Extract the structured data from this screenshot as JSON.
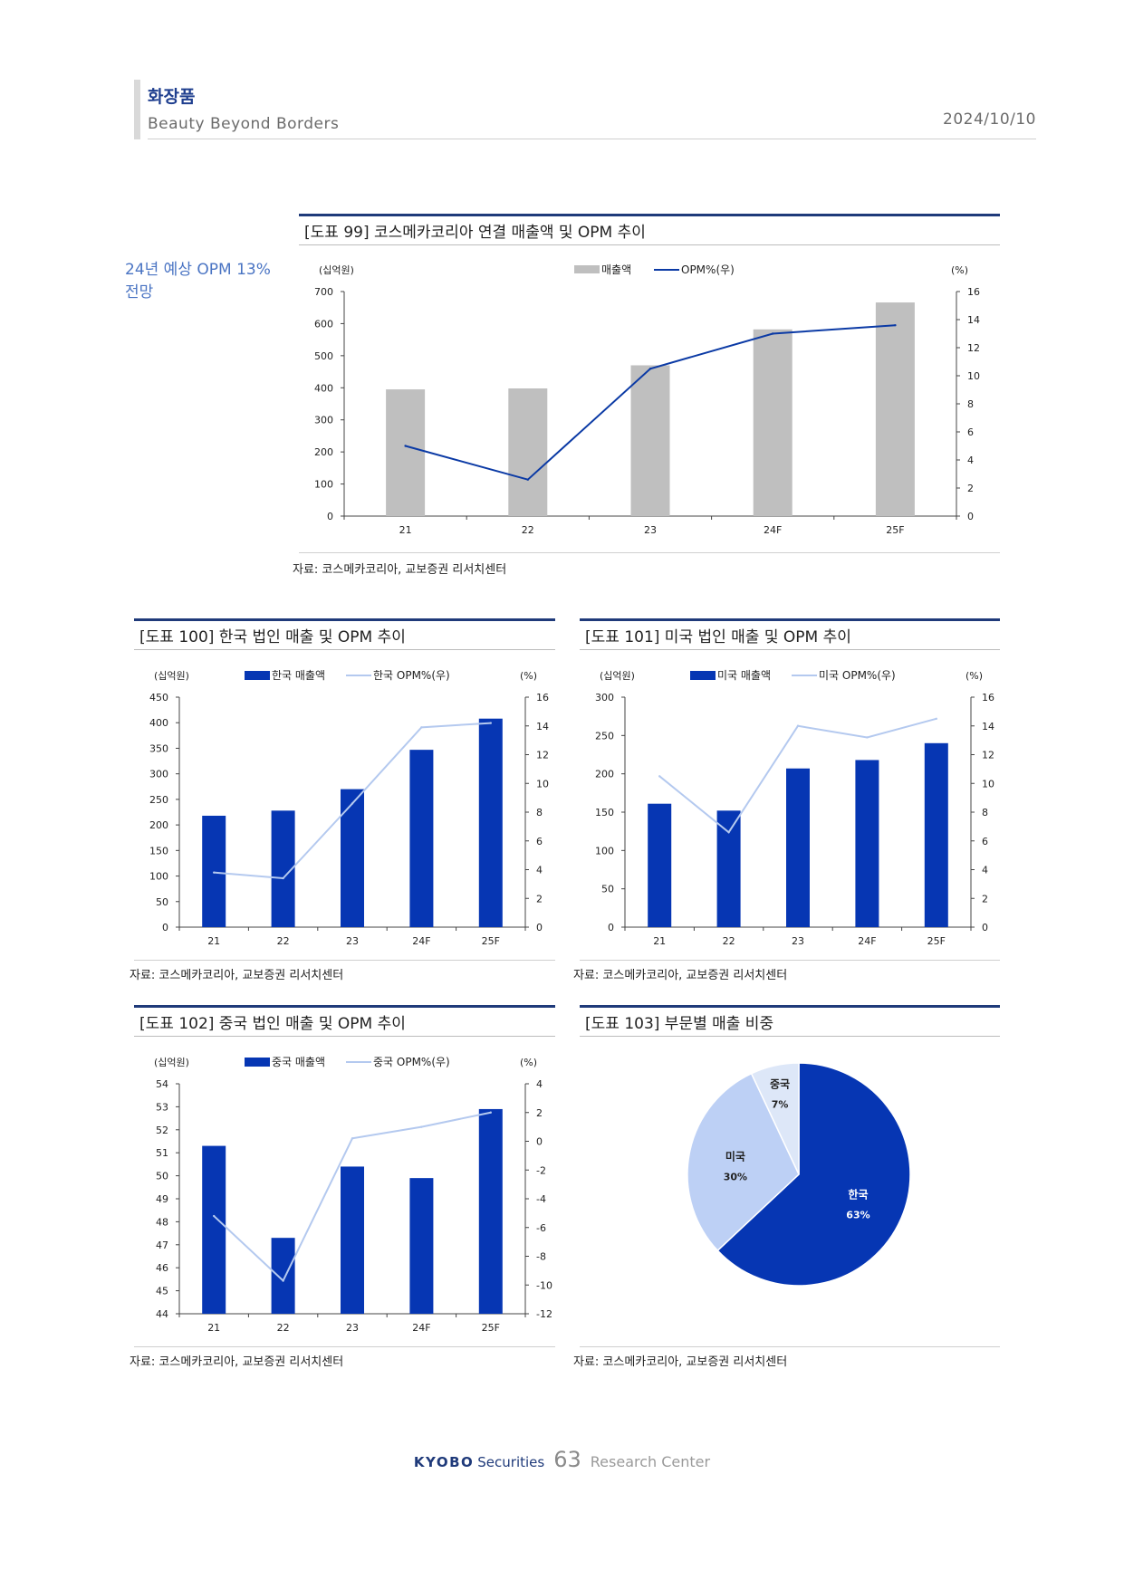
{
  "header": {
    "title": "화장품",
    "subtitle": "Beauty Beyond Borders",
    "date": "2024/10/10"
  },
  "side_note": [
    "24년 예상 OPM 13%",
    "전망"
  ],
  "figures": {
    "fig99": {
      "title": "[도표 99] 코스메카코리아 연결 매출액 및 OPM 추이",
      "source": "자료: 코스메카코리아, 교보증권 리서치센터"
    },
    "fig100": {
      "title": "[도표 100] 한국 법인 매출 및 OPM 추이",
      "source": "자료: 코스메카코리아, 교보증권 리서치센터"
    },
    "fig101": {
      "title": "[도표 101] 미국 법인 매출 및 OPM 추이",
      "source": "자료: 코스메카코리아, 교보증권 리서치센터"
    },
    "fig102": {
      "title": "[도표 102] 중국 법인 매출 및 OPM 추이",
      "source": "자료: 코스메카코리아, 교보증권 리서치센터"
    },
    "fig103": {
      "title": "[도표 103] 부문별 매출 비중",
      "source": "자료: 코스메카코리아, 교보증권 리서치센터"
    }
  },
  "chart_data": [
    {
      "id": "fig99",
      "type": "bar+line",
      "categories": [
        "21",
        "22",
        "23",
        "24F",
        "25F"
      ],
      "series": [
        {
          "name": "매출액",
          "kind": "bar",
          "axis": "left",
          "values": [
            395,
            398,
            470,
            582,
            666
          ]
        },
        {
          "name": "OPM%(우)",
          "kind": "line",
          "axis": "right",
          "values": [
            5.0,
            2.6,
            10.5,
            13.0,
            13.6
          ]
        }
      ],
      "left_axis": {
        "unit": "(십억원)",
        "min": 0,
        "max": 700,
        "step": 100
      },
      "right_axis": {
        "unit": "(%)",
        "min": 0,
        "max": 16,
        "step": 2
      },
      "colors": {
        "bar": "#bfbfbf",
        "line": "#0b3aa5"
      }
    },
    {
      "id": "fig100",
      "type": "bar+line",
      "categories": [
        "21",
        "22",
        "23",
        "24F",
        "25F"
      ],
      "series": [
        {
          "name": "한국 매출액",
          "kind": "bar",
          "axis": "left",
          "values": [
            218,
            228,
            270,
            347,
            408
          ]
        },
        {
          "name": "한국 OPM%(우)",
          "kind": "line",
          "axis": "right",
          "values": [
            3.8,
            3.4,
            8.6,
            13.9,
            14.2
          ]
        }
      ],
      "left_axis": {
        "unit": "(십억원)",
        "min": 0,
        "max": 450,
        "step": 50
      },
      "right_axis": {
        "unit": "(%)",
        "min": 0,
        "max": 16,
        "step": 2
      },
      "colors": {
        "bar": "#0636b3",
        "line": "#b4c9ef"
      }
    },
    {
      "id": "fig101",
      "type": "bar+line",
      "categories": [
        "21",
        "22",
        "23",
        "24F",
        "25F"
      ],
      "series": [
        {
          "name": "미국 매출액",
          "kind": "bar",
          "axis": "left",
          "values": [
            161,
            152,
            207,
            218,
            240
          ]
        },
        {
          "name": "미국 OPM%(우)",
          "kind": "line",
          "axis": "right",
          "values": [
            10.5,
            6.6,
            14.0,
            13.2,
            14.5
          ]
        }
      ],
      "left_axis": {
        "unit": "(십억원)",
        "min": 0,
        "max": 300,
        "step": 50
      },
      "right_axis": {
        "unit": "(%)",
        "min": 0,
        "max": 16,
        "step": 2
      },
      "colors": {
        "bar": "#0636b3",
        "line": "#b4c9ef"
      }
    },
    {
      "id": "fig102",
      "type": "bar+line",
      "categories": [
        "21",
        "22",
        "23",
        "24F",
        "25F"
      ],
      "series": [
        {
          "name": "중국 매출액",
          "kind": "bar",
          "axis": "left",
          "values": [
            51.3,
            47.3,
            50.4,
            49.9,
            52.9
          ]
        },
        {
          "name": "중국 OPM%(우)",
          "kind": "line",
          "axis": "right",
          "values": [
            -5.2,
            -9.7,
            0.2,
            1.0,
            2.0
          ]
        }
      ],
      "left_axis": {
        "unit": "(십억원)",
        "min": 44,
        "max": 54,
        "step": 1
      },
      "right_axis": {
        "unit": "(%)",
        "min": -12,
        "max": 4,
        "step": 2
      },
      "colors": {
        "bar": "#0636b3",
        "line": "#b4c9ef"
      }
    },
    {
      "id": "fig103",
      "type": "pie",
      "slices": [
        {
          "name": "한국",
          "label": "63%",
          "value": 63,
          "color": "#0636b3",
          "text_color": "#ffffff"
        },
        {
          "name": "미국",
          "label": "30%",
          "value": 30,
          "color": "#bdd0f5",
          "text_color": "#222222"
        },
        {
          "name": "중국",
          "label": "7%",
          "value": 7,
          "color": "#dde7f8",
          "text_color": "#222222"
        }
      ]
    }
  ],
  "footer": {
    "brand": "KYOBO",
    "brand_suffix": "Securities",
    "page_number": "63",
    "center": "Research Center"
  }
}
